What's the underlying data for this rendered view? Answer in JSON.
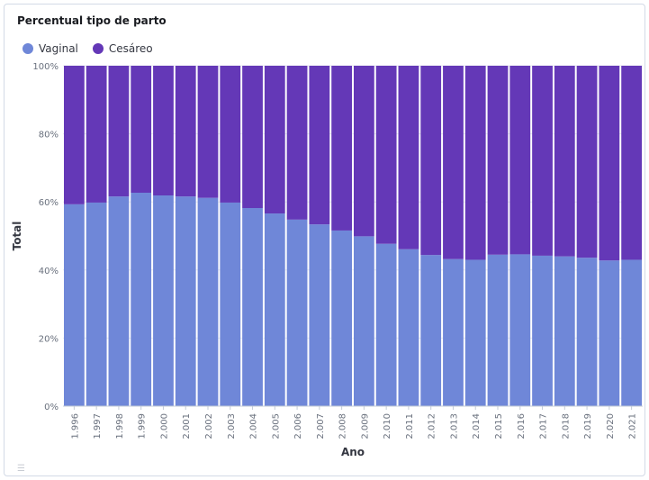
{
  "panel": {
    "title": "Percentual tipo de parto",
    "menu_icon": "list-icon"
  },
  "colors": {
    "vaginal": "#6f87d8",
    "cesareo": "#6438b7",
    "axis_text": "#69707d",
    "grid": "#e8ecf1"
  },
  "chart_data": {
    "type": "bar",
    "stacked": "percent",
    "title": "",
    "xlabel": "Ano",
    "ylabel": "Total",
    "ylim": [
      0,
      100
    ],
    "yticks": [
      "0%",
      "20%",
      "40%",
      "60%",
      "80%",
      "100%"
    ],
    "legend_position": "top-left",
    "categories": [
      "1.996",
      "1.997",
      "1.998",
      "1.999",
      "2.000",
      "2.001",
      "2.002",
      "2.003",
      "2.004",
      "2.005",
      "2.006",
      "2.007",
      "2.008",
      "2.009",
      "2.010",
      "2.011",
      "2.012",
      "2.013",
      "2.014",
      "2.015",
      "2.016",
      "2.017",
      "2.018",
      "2.019",
      "2.020",
      "2.021"
    ],
    "series": [
      {
        "name": "Vaginal",
        "values": [
          59.3,
          59.8,
          61.6,
          62.7,
          61.9,
          61.6,
          61.2,
          59.8,
          58.2,
          56.6,
          54.8,
          53.4,
          51.6,
          49.9,
          47.7,
          46.1,
          44.4,
          43.2,
          43.0,
          44.5,
          44.6,
          44.2,
          44.0,
          43.6,
          42.8,
          43.0
        ]
      },
      {
        "name": "Cesáreo",
        "values": [
          40.7,
          40.2,
          38.4,
          37.3,
          38.1,
          38.4,
          38.8,
          40.2,
          41.8,
          43.4,
          45.2,
          46.6,
          48.4,
          50.1,
          52.3,
          53.9,
          55.6,
          56.8,
          57.0,
          55.5,
          55.4,
          55.8,
          56.0,
          56.4,
          57.2,
          57.0
        ]
      }
    ]
  }
}
